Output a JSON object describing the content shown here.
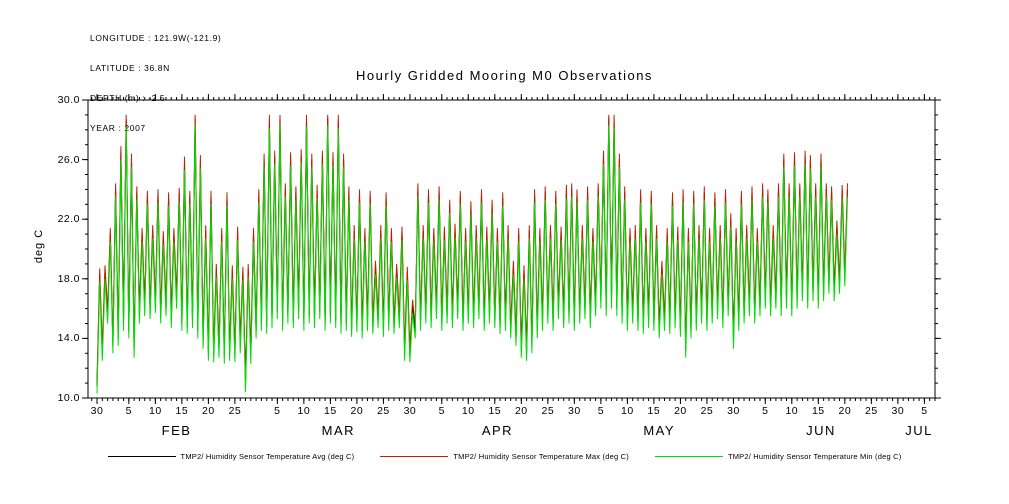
{
  "info": {
    "longitude": "LONGITUDE : 121.9W(-121.9)",
    "latitude": "LATITUDE : 36.8N",
    "depth": "DEPTH (m) : -2.5",
    "year": "YEAR : 2007"
  },
  "title": "Hourly Gridded Mooring M0 Observations",
  "chart_data": {
    "type": "line",
    "title": "Hourly Gridded Mooring M0 Observations",
    "ylabel": "deg C",
    "xlabel": "",
    "grid": false,
    "legend_position": "bottom",
    "y_axis": {
      "lim": [
        10,
        30
      ],
      "minor_step": 1,
      "ticks": [
        {
          "v": 10,
          "label": "10.0"
        },
        {
          "v": 14,
          "label": "14.0"
        },
        {
          "v": 18,
          "label": "18.0"
        },
        {
          "v": 22,
          "label": "22.0"
        },
        {
          "v": 26,
          "label": "26.0"
        },
        {
          "v": 30,
          "label": "30.0"
        }
      ]
    },
    "x_axis": {
      "lim": [
        28.3,
        188
      ],
      "minor_step": 1,
      "unit": "day_of_year_2007",
      "ticks": [
        {
          "d": 30,
          "label": "30"
        },
        {
          "d": 36,
          "label": "5"
        },
        {
          "d": 41,
          "label": "10"
        },
        {
          "d": 46,
          "label": "15"
        },
        {
          "d": 51,
          "label": "20"
        },
        {
          "d": 56,
          "label": "25"
        },
        {
          "d": 64,
          "label": "5"
        },
        {
          "d": 69,
          "label": "10"
        },
        {
          "d": 74,
          "label": "15"
        },
        {
          "d": 79,
          "label": "20"
        },
        {
          "d": 84,
          "label": "25"
        },
        {
          "d": 89,
          "label": "30"
        },
        {
          "d": 95,
          "label": "5"
        },
        {
          "d": 100,
          "label": "10"
        },
        {
          "d": 105,
          "label": "15"
        },
        {
          "d": 110,
          "label": "20"
        },
        {
          "d": 115,
          "label": "25"
        },
        {
          "d": 120,
          "label": "30"
        },
        {
          "d": 125,
          "label": "5"
        },
        {
          "d": 130,
          "label": "10"
        },
        {
          "d": 135,
          "label": "15"
        },
        {
          "d": 140,
          "label": "20"
        },
        {
          "d": 145,
          "label": "25"
        },
        {
          "d": 150,
          "label": "30"
        },
        {
          "d": 156,
          "label": "5"
        },
        {
          "d": 161,
          "label": "10"
        },
        {
          "d": 166,
          "label": "15"
        },
        {
          "d": 171,
          "label": "20"
        },
        {
          "d": 176,
          "label": "25"
        },
        {
          "d": 181,
          "label": "30"
        },
        {
          "d": 186,
          "label": "5"
        }
      ],
      "months": [
        {
          "d": 45,
          "label": "FEB"
        },
        {
          "d": 75.5,
          "label": "MAR"
        },
        {
          "d": 105.5,
          "label": "APR"
        },
        {
          "d": 136,
          "label": "MAY"
        },
        {
          "d": 166.5,
          "label": "JUN"
        },
        {
          "d": 185,
          "label": "JUL"
        }
      ]
    },
    "x_start": 30,
    "x_step": 0.5,
    "series": [
      {
        "name": "TMP2/ Humidity Sensor Temperature Avg (deg C)",
        "color": "#000000",
        "values": [
          10.8,
          18.3,
          13.0,
          18.5,
          15.5,
          21.0,
          13.5,
          24.0,
          14.0,
          26.5,
          15.0,
          28.7,
          14.5,
          26.0,
          13.2,
          23.8,
          15.5,
          21.0,
          16.0,
          23.5,
          15.8,
          21.2,
          16.2,
          23.6,
          15.5,
          20.8,
          16.0,
          23.4,
          15.2,
          21.0,
          16.5,
          23.7,
          15.0,
          25.8,
          14.8,
          23.5,
          15.2,
          28.8,
          14.5,
          25.9,
          13.8,
          21.2,
          13.0,
          23.5,
          12.9,
          18.6,
          13.2,
          21.0,
          12.8,
          23.4,
          13.0,
          18.5,
          12.9,
          21.1,
          13.5,
          18.4,
          10.9,
          18.6,
          12.8,
          21.0,
          14.5,
          23.6,
          15.0,
          26.0,
          14.8,
          28.6,
          15.2,
          26.2,
          15.8,
          28.8,
          15.0,
          24.0,
          15.5,
          26.1,
          15.2,
          23.8,
          15.8,
          26.3,
          15.0,
          28.7,
          15.5,
          26.0,
          15.2,
          23.9,
          15.8,
          26.2,
          15.0,
          28.8,
          15.5,
          26.1,
          15.2,
          28.6,
          14.8,
          26.0,
          15.0,
          23.8,
          14.6,
          21.2,
          14.9,
          23.6,
          14.5,
          21.0,
          15.0,
          23.5,
          14.8,
          18.8,
          15.2,
          21.2,
          14.6,
          23.4,
          15.0,
          21.0,
          14.8,
          18.6,
          15.2,
          21.1,
          13.0,
          18.4,
          12.9,
          16.2,
          14.5,
          24.0,
          15.0,
          21.2,
          15.5,
          23.6,
          15.2,
          21.0,
          15.8,
          23.8,
          15.0,
          21.1,
          15.5,
          22.9,
          15.2,
          21.3,
          15.8,
          23.5,
          15.0,
          21.0,
          15.5,
          22.8,
          15.2,
          21.2,
          15.8,
          23.6,
          15.0,
          21.1,
          15.5,
          22.9,
          15.2,
          21.0,
          14.8,
          23.4,
          15.0,
          21.2,
          14.5,
          18.8,
          14.0,
          21.0,
          13.2,
          18.5,
          13.0,
          21.2,
          13.5,
          23.6,
          14.5,
          21.0,
          15.0,
          23.8,
          15.5,
          21.2,
          15.0,
          23.5,
          15.8,
          21.1,
          15.2,
          23.9,
          15.5,
          24.0,
          15.0,
          23.6,
          15.5,
          21.2,
          15.8,
          23.8,
          15.2,
          21.0,
          16.0,
          24.0,
          16.5,
          26.2,
          16.0,
          28.8,
          16.5,
          28.6,
          16.0,
          26.0,
          15.5,
          23.8,
          15.0,
          21.0,
          15.5,
          21.2,
          15.0,
          23.6,
          14.8,
          21.0,
          15.2,
          23.5,
          15.0,
          21.2,
          14.5,
          18.8,
          15.0,
          21.0,
          14.8,
          23.4,
          15.2,
          21.1,
          14.6,
          23.6,
          13.2,
          21.0,
          14.5,
          23.5,
          15.0,
          21.2,
          15.5,
          23.8,
          15.0,
          21.0,
          15.5,
          23.4,
          15.8,
          21.2,
          15.2,
          23.6,
          16.0,
          22.0,
          13.8,
          21.0,
          15.0,
          23.5,
          15.5,
          21.2,
          16.0,
          23.8,
          15.5,
          21.0,
          16.0,
          24.0,
          16.5,
          23.6,
          16.0,
          21.2,
          16.5,
          24.0,
          16.0,
          26.0,
          16.5,
          24.0,
          16.0,
          26.1,
          16.5,
          24.0,
          17.0,
          26.2,
          16.5,
          25.9,
          17.0,
          24.0,
          16.5,
          26.0,
          17.0,
          24.0,
          17.5,
          23.8,
          17.0,
          21.5,
          17.5,
          23.9,
          18.0,
          24.0
        ]
      },
      {
        "name": "TMP2/ Humidity Sensor Temperature Max (deg C)",
        "color": "#bb2200",
        "offset_from_avg": 0.4
      },
      {
        "name": "TMP2/ Humidity Sensor Temperature Min (deg C)",
        "color": "#00dd00",
        "offset_from_avg": -0.5
      }
    ]
  }
}
